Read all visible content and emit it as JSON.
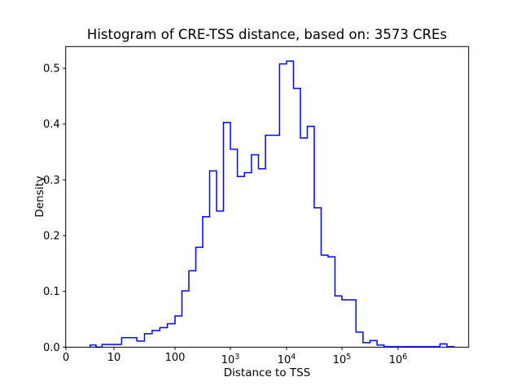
{
  "figure": {
    "title": "Histogram of CRE-TSS distance, based on: 3573 CREs",
    "background_color": "#ffffff",
    "frame_color": "#000000",
    "text_color": "#000000"
  },
  "chart_data": {
    "type": "histogram-step",
    "title": "Histogram of CRE-TSS distance, based on: 3573 CREs",
    "xlabel": "Distance to TSS",
    "ylabel": "Density",
    "n_cres": 3573,
    "x_scale": "symlog",
    "y_scale": "linear",
    "ylim": [
      0.0,
      0.539
    ],
    "line_color": "#0000FF",
    "line_width": 1.5,
    "x_ticks": [
      {
        "label": "0",
        "value": 0
      },
      {
        "label": "10",
        "value": 10
      },
      {
        "label": "100",
        "value": 100
      },
      {
        "label": "10^3",
        "value": 1000
      },
      {
        "label": "10^4",
        "value": 10000
      },
      {
        "label": "10^5",
        "value": 100000
      },
      {
        "label": "10^6",
        "value": 1000000
      }
    ],
    "y_ticks": [
      {
        "label": "0.0",
        "value": 0.0
      },
      {
        "label": "0.1",
        "value": 0.1
      },
      {
        "label": "0.2",
        "value": 0.2
      },
      {
        "label": "0.3",
        "value": 0.3
      },
      {
        "label": "0.4",
        "value": 0.4
      },
      {
        "label": "0.5",
        "value": 0.5
      }
    ],
    "bin_edges_log10": [
      0.5,
      0.625,
      0.75,
      0.875,
      1.0,
      1.125,
      1.25,
      1.375,
      1.5,
      1.625,
      1.75,
      1.875,
      2.0,
      2.125,
      2.25,
      2.375,
      2.5,
      2.625,
      2.75,
      2.875,
      3.0,
      3.125,
      3.25,
      3.375,
      3.5,
      3.625,
      3.75,
      3.875,
      4.0,
      4.125,
      4.25,
      4.375,
      4.5,
      4.625,
      4.75,
      4.875,
      5.0,
      5.125,
      5.25,
      5.375,
      5.5,
      5.625,
      5.75,
      5.875,
      6.0,
      6.125,
      6.25,
      6.375,
      6.5,
      6.625,
      6.75,
      6.875,
      7.0
    ],
    "densities": [
      0.004,
      0.0,
      0.005,
      0.005,
      0.005,
      0.017,
      0.017,
      0.011,
      0.024,
      0.03,
      0.035,
      0.042,
      0.056,
      0.101,
      0.137,
      0.179,
      0.234,
      0.316,
      0.244,
      0.403,
      0.355,
      0.306,
      0.313,
      0.345,
      0.32,
      0.38,
      0.38,
      0.508,
      0.513,
      0.464,
      0.375,
      0.396,
      0.25,
      0.165,
      0.162,
      0.092,
      0.085,
      0.085,
      0.027,
      0.008,
      0.012,
      0.004,
      0.001,
      0.001,
      0.001,
      0.001,
      0.001,
      0.001,
      0.001,
      0.001,
      0.006,
      0.001
    ]
  }
}
